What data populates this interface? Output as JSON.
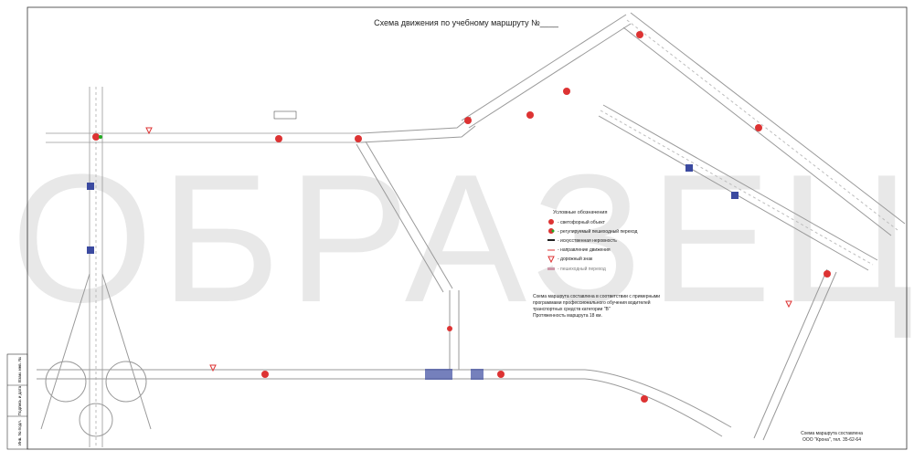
{
  "title": "Схема движения по учебному маршруту  №____",
  "watermark": "ОБРАЗЕЦ",
  "legend": {
    "title": "Условные обозначения",
    "items": [
      "- светофорный объект",
      "- регулируемый пешеходный переход",
      "- искусственная неровность",
      "- направление движения",
      "- дорожный знак",
      "- пешеходный переход"
    ]
  },
  "note": [
    "Схема маршрута составлена в соответствии с примерными",
    "программами профессионального обучения водителей",
    "транспортных средств категории  \"В\"",
    "Протяженность маршрута  18 км."
  ],
  "footer": [
    "Схема маршрута составлена",
    "ООО \"Крона\", тел. 35-62-64"
  ],
  "stamps": [
    "Инв. № подл.",
    "Подпись и дата",
    "Взам. инв. №"
  ]
}
